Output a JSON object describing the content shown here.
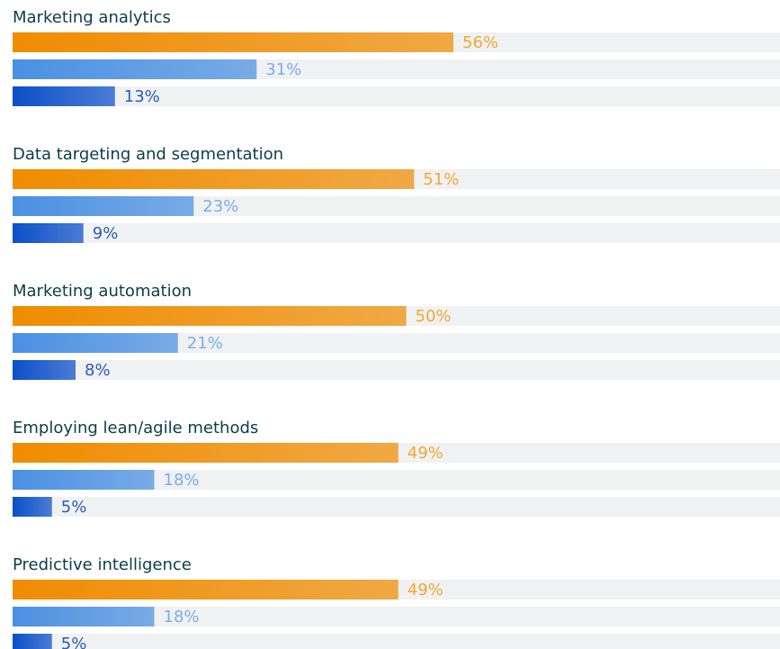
{
  "chart_data": {
    "type": "bar",
    "categories": [
      "Marketing analytics",
      "Data targeting and segmentation",
      "Marketing automation",
      "Employing lean/agile methods",
      "Predictive intelligence"
    ],
    "series": [
      {
        "color": "#f08c00",
        "values": [
          56,
          51,
          50,
          49,
          49
        ],
        "value_labels": [
          "56%",
          "51%",
          "50%",
          "49%",
          "49%"
        ]
      },
      {
        "color": "#4a90e2",
        "values": [
          31,
          23,
          21,
          18,
          18
        ],
        "value_labels": [
          "31%",
          "23%",
          "21%",
          "18%",
          "18%"
        ]
      },
      {
        "color": "#0b4fc9",
        "values": [
          13,
          9,
          8,
          5,
          5
        ],
        "value_labels": [
          "13%",
          "9%",
          "8%",
          "5%",
          "5%"
        ]
      }
    ]
  }
}
